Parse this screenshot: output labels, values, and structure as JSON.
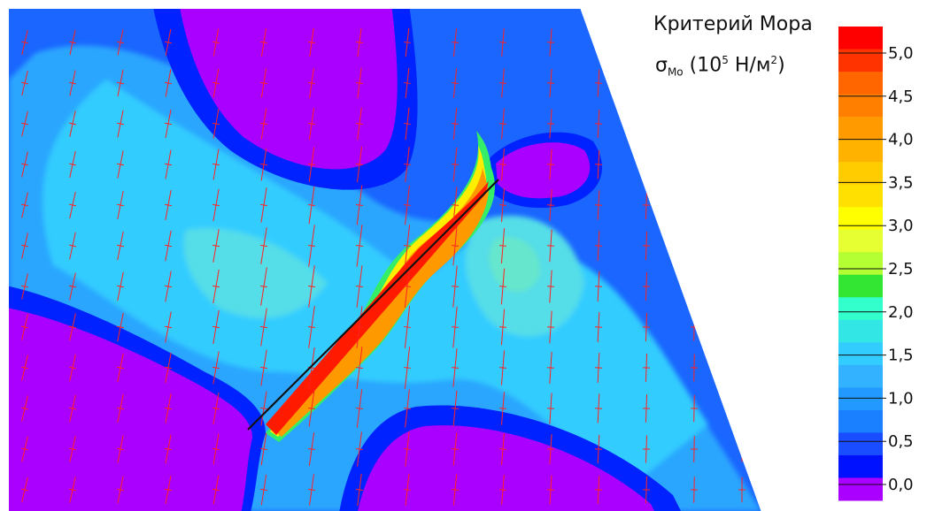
{
  "legend": {
    "title": "Критерий Мора",
    "symbol": "σ",
    "symbol_sub": "Mo",
    "units_open": "(10",
    "units_exp": "5",
    "units_rest": " Н/м",
    "units_exp2": "2",
    "units_close": ")",
    "tick_labels": [
      "5,0",
      "4,5",
      "4,0",
      "3,5",
      "3,0",
      "2,5",
      "2,0",
      "1,5",
      "1,0",
      "0,5",
      "0,0"
    ],
    "colors": [
      "#ff0000",
      "#ff3300",
      "#ff6600",
      "#ff8000",
      "#ff9a00",
      "#ffb300",
      "#ffcc00",
      "#ffe000",
      "#ffff00",
      "#e6ff33",
      "#b3ff33",
      "#33e633",
      "#33ffcc",
      "#33e6e6",
      "#33ccff",
      "#33b3ff",
      "#2299ff",
      "#1a80ff",
      "#1a4dff",
      "#0011ff",
      "#aa00ff"
    ]
  },
  "colors": {
    "violet": "#aa00ff",
    "dark_blue": "#0022ff",
    "blue": "#1a66ff",
    "light_blue": "#2aa6ff",
    "cyan": "#33ccff",
    "pale_cyan": "#55dde8",
    "green": "#33ee66",
    "yellow": "#ffee00",
    "orange": "#ff9900",
    "red": "#ff1a00",
    "crack": "#111111",
    "tick": "#ff2222"
  }
}
